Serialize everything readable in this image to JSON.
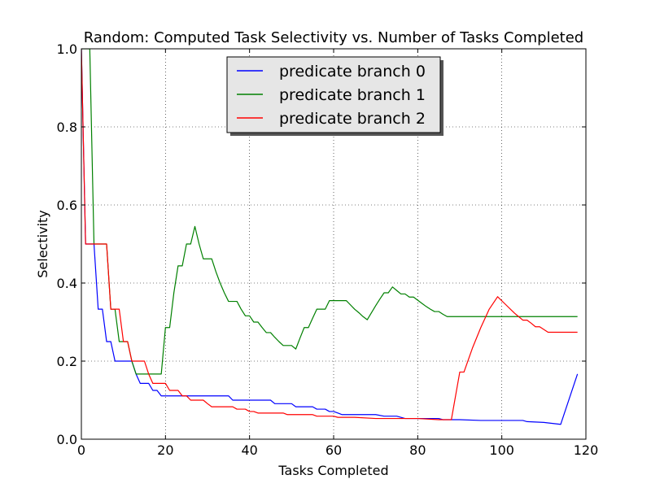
{
  "chart_data": {
    "type": "line",
    "title": "Random: Computed Task Selectivity vs. Number of Tasks Completed",
    "xlabel": "Tasks Completed",
    "ylabel": "Selectivity",
    "xlim": [
      0,
      120
    ],
    "ylim": [
      0.0,
      1.0
    ],
    "xticks": [
      0,
      20,
      40,
      60,
      80,
      100,
      120
    ],
    "yticks": [
      0.0,
      0.2,
      0.4,
      0.6,
      0.8,
      1.0
    ],
    "xtick_labels": [
      "0",
      "20",
      "40",
      "60",
      "80",
      "100",
      "120"
    ],
    "ytick_labels": [
      "0.0",
      "0.2",
      "0.4",
      "0.6",
      "0.8",
      "1.0"
    ],
    "grid": true,
    "legend_position": "top-center",
    "series": [
      {
        "name": "predicate branch 0",
        "color": "#0000ff",
        "x": [
          0,
          1,
          2,
          3,
          4,
          4,
          5,
          6,
          7,
          8,
          9,
          10,
          11,
          12,
          13,
          14,
          15,
          16,
          17,
          18,
          19,
          20,
          25,
          30,
          35,
          36,
          40,
          45,
          46,
          50,
          51,
          55,
          56,
          58,
          59,
          60,
          61,
          62,
          65,
          70,
          72,
          75,
          77,
          80,
          85,
          86,
          90,
          95,
          100,
          105,
          106,
          110,
          114,
          118
        ],
        "y": [
          1.0,
          0.5,
          0.5,
          0.5,
          0.333,
          0.333,
          0.333,
          0.25,
          0.25,
          0.2,
          0.2,
          0.2,
          0.2,
          0.2,
          0.167,
          0.143,
          0.143,
          0.143,
          0.125,
          0.125,
          0.111,
          0.111,
          0.111,
          0.111,
          0.111,
          0.1,
          0.1,
          0.1,
          0.091,
          0.091,
          0.083,
          0.083,
          0.077,
          0.077,
          0.071,
          0.071,
          0.067,
          0.063,
          0.063,
          0.063,
          0.059,
          0.059,
          0.053,
          0.053,
          0.053,
          0.05,
          0.05,
          0.048,
          0.048,
          0.048,
          0.045,
          0.043,
          0.038,
          0.167
        ]
      },
      {
        "name": "predicate branch 1",
        "color": "#008000",
        "x": [
          0,
          1,
          2,
          3,
          4,
          5,
          6,
          7,
          8,
          9,
          10,
          11,
          12,
          13,
          14,
          15,
          16,
          17,
          18,
          19,
          20,
          21,
          22,
          23,
          24,
          25,
          26,
          27,
          28,
          29,
          30,
          31,
          32,
          33,
          34,
          35,
          36,
          37,
          38,
          39,
          40,
          41,
          42,
          43,
          44,
          45,
          46,
          47,
          48,
          49,
          50,
          51,
          52,
          53,
          54,
          55,
          56,
          57,
          58,
          59,
          60,
          61,
          62,
          63,
          64,
          65,
          66,
          67,
          68,
          69,
          70,
          71,
          72,
          73,
          74,
          75,
          76,
          77,
          78,
          79,
          80,
          81,
          82,
          83,
          84,
          85,
          86,
          87,
          88,
          90,
          95,
          100,
          105,
          110,
          115,
          118
        ],
        "y": [
          1.0,
          1.0,
          1.0,
          0.5,
          0.5,
          0.5,
          0.5,
          0.333,
          0.333,
          0.25,
          0.25,
          0.25,
          0.2,
          0.167,
          0.167,
          0.167,
          0.167,
          0.167,
          0.167,
          0.167,
          0.286,
          0.286,
          0.375,
          0.444,
          0.444,
          0.5,
          0.5,
          0.545,
          0.5,
          0.462,
          0.462,
          0.462,
          0.429,
          0.4,
          0.375,
          0.353,
          0.353,
          0.353,
          0.333,
          0.316,
          0.316,
          0.3,
          0.3,
          0.286,
          0.273,
          0.273,
          0.261,
          0.25,
          0.24,
          0.24,
          0.24,
          0.231,
          0.259,
          0.286,
          0.286,
          0.31,
          0.333,
          0.333,
          0.333,
          0.355,
          0.355,
          0.355,
          0.355,
          0.355,
          0.344,
          0.333,
          0.324,
          0.314,
          0.306,
          0.324,
          0.342,
          0.359,
          0.375,
          0.375,
          0.39,
          0.381,
          0.372,
          0.372,
          0.364,
          0.364,
          0.356,
          0.348,
          0.34,
          0.333,
          0.327,
          0.327,
          0.32,
          0.314,
          0.314,
          0.314,
          0.314,
          0.314,
          0.314,
          0.314,
          0.314,
          0.314
        ]
      },
      {
        "name": "predicate branch 2",
        "color": "#ff0000",
        "x": [
          0,
          1,
          2,
          3,
          4,
          5,
          6,
          7,
          8,
          9,
          10,
          11,
          12,
          13,
          14,
          15,
          16,
          17,
          18,
          19,
          20,
          21,
          22,
          23,
          24,
          25,
          26,
          27,
          28,
          29,
          30,
          31,
          32,
          33,
          34,
          35,
          36,
          37,
          38,
          39,
          40,
          41,
          42,
          43,
          44,
          45,
          46,
          47,
          48,
          49,
          50,
          55,
          56,
          60,
          61,
          62,
          65,
          70,
          75,
          80,
          85,
          88,
          90,
          91,
          93,
          95,
          97,
          99,
          101,
          103,
          105,
          106,
          107,
          108,
          109,
          110,
          111,
          115,
          118
        ],
        "y": [
          1.0,
          0.5,
          0.5,
          0.5,
          0.5,
          0.5,
          0.5,
          0.333,
          0.333,
          0.333,
          0.25,
          0.25,
          0.2,
          0.2,
          0.2,
          0.2,
          0.167,
          0.143,
          0.143,
          0.143,
          0.143,
          0.125,
          0.125,
          0.125,
          0.111,
          0.111,
          0.1,
          0.1,
          0.1,
          0.1,
          0.091,
          0.083,
          0.083,
          0.083,
          0.083,
          0.083,
          0.083,
          0.077,
          0.077,
          0.077,
          0.071,
          0.071,
          0.067,
          0.067,
          0.067,
          0.067,
          0.067,
          0.067,
          0.067,
          0.063,
          0.063,
          0.063,
          0.059,
          0.059,
          0.056,
          0.056,
          0.056,
          0.053,
          0.053,
          0.053,
          0.05,
          0.05,
          0.172,
          0.172,
          0.233,
          0.286,
          0.333,
          0.365,
          0.344,
          0.323,
          0.305,
          0.305,
          0.297,
          0.288,
          0.288,
          0.281,
          0.274,
          0.274,
          0.274
        ]
      }
    ]
  }
}
